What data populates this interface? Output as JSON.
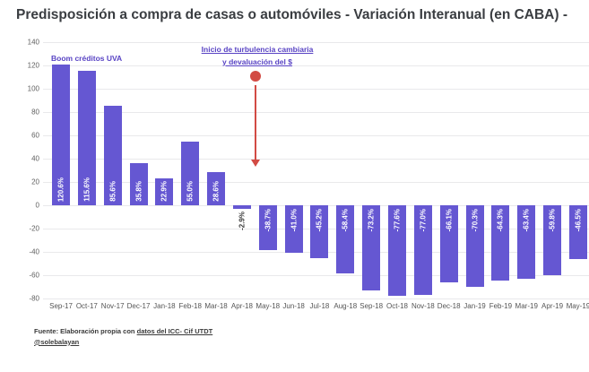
{
  "title": "Predisposición a compra de casas o automóviles - Variación Interanual (en CABA) -",
  "annotations": {
    "boom": "Boom créditos UVA",
    "turbulence_line1": "Inicio de turbulencia cambiaria",
    "turbulence_line2": "y devaluación del $"
  },
  "footer": {
    "source_prefix": "Fuente: Elaboración propia con ",
    "source_link": "datos del ICC- Cif UTDT",
    "handle": "@solebalayan"
  },
  "colors": {
    "bar": "#6557d2",
    "bar_label_inside": "#ffffff",
    "bar_label_outside": "#3c3c3c",
    "annotation_purple": "#5843c4",
    "arrow_red": "#d24b44",
    "title_text": "#3a3d41",
    "axis_label": "#616161",
    "gridline": "#e9e9eb"
  },
  "chart_data": {
    "type": "bar",
    "title": "Predisposición a compra de casas o automóviles - Variación Interanual (en CABA)",
    "xlabel": "",
    "ylabel": "",
    "grid": true,
    "legend": "none",
    "ylim": [
      -80,
      140
    ],
    "yticks": [
      140,
      120,
      100,
      80,
      60,
      40,
      20,
      0,
      -20,
      -40,
      -60,
      -80
    ],
    "categories": [
      "Sep-17",
      "Oct-17",
      "Nov-17",
      "Dec-17",
      "Jan-18",
      "Feb-18",
      "Mar-18",
      "Apr-18",
      "May-18",
      "Jun-18",
      "Jul-18",
      "Aug-18",
      "Sep-18",
      "Oct-18",
      "Nov-18",
      "Dec-18",
      "Jan-19",
      "Feb-19",
      "Mar-19",
      "Apr-19",
      "May-19"
    ],
    "values": [
      120.6,
      115.6,
      85.6,
      35.8,
      22.9,
      55.0,
      28.6,
      -2.9,
      -38.7,
      -41.0,
      -45.2,
      -58.4,
      -73.2,
      -77.6,
      -77.0,
      -66.1,
      -70.3,
      -64.3,
      -63.4,
      -59.8,
      -46.5
    ],
    "labels": [
      "120.6%",
      "115.6%",
      "85.6%",
      "35.8%",
      "22.9%",
      "55.0%",
      "28.6%",
      "-2.9%",
      "-38.7%",
      "-41.0%",
      "-45.2%",
      "-58.4%",
      "-73.2%",
      "-77.6%",
      "-77.0%",
      "-66.1%",
      "-70.3%",
      "-64.3%",
      "-63.4%",
      "-59.8%",
      "-46.5%"
    ],
    "annotations": [
      {
        "text": "Boom créditos UVA",
        "position": "over Sep-17/Oct-17 bars"
      },
      {
        "text": "Inicio de turbulencia cambiaria y devaluación del $",
        "position": "arrow pointing down between Apr-18 and May-18"
      }
    ]
  }
}
